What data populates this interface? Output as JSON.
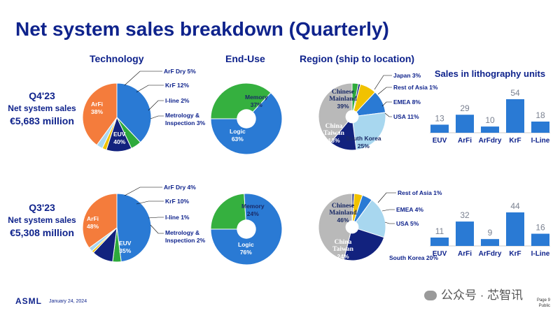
{
  "title": "Net system sales breakdown (Quarterly)",
  "headers": {
    "technology": "Technology",
    "end_use": "End-Use",
    "region": "Region (ship to location)"
  },
  "rows": [
    {
      "quarter": "Q4'23",
      "sales_label": "Net system sales",
      "amount": "€5,683 million"
    },
    {
      "quarter": "Q3'23",
      "sales_label": "Net system sales",
      "amount": "€5,308 million"
    }
  ],
  "chart_data": [
    {
      "type": "pie",
      "id": "tech_q4",
      "labels": [
        "ArFi",
        "ArF Dry",
        "KrF",
        "I-line",
        "Metrology & Inspection",
        "EUV"
      ],
      "values": [
        38,
        5,
        12,
        2,
        3,
        40
      ],
      "colors": [
        "#2a7ad4",
        "#2eaa3c",
        "#12227e",
        "#f1c200",
        "#a8d7ef",
        "#f47c3c"
      ],
      "label_texts": [
        "ArFi 38%",
        "ArF Dry 5%",
        "KrF 12%",
        "I-line 2%",
        "Metrology & Inspection 3%",
        "EUV 40%"
      ]
    },
    {
      "type": "pie",
      "id": "enduse_q4",
      "labels": [
        "Memory",
        "Logic"
      ],
      "values": [
        37,
        63
      ],
      "colors": [
        "#35b03f",
        "#2a7ad4"
      ],
      "label_texts": [
        "Memory 37%",
        "Logic 63%"
      ]
    },
    {
      "type": "pie",
      "id": "region_q4",
      "labels": [
        "Japan",
        "Rest of Asia",
        "EMEA",
        "USA",
        "South Korea",
        "China Taiwan",
        "Chinese Mainland"
      ],
      "values": [
        3,
        1,
        8,
        11,
        25,
        13,
        39
      ],
      "colors": [
        "#2eaa3c",
        "#12227e",
        "#f1c200",
        "#2a7ad4",
        "#a8d7ef",
        "#12227e",
        "#b9b9b9"
      ],
      "label_texts": [
        "Japan 3%",
        "Rest of Asia 1%",
        "EMEA 8%",
        "USA 11%",
        "South Korea 25%",
        "China Taiwan 13%",
        "Chinese Mainland 39%"
      ]
    },
    {
      "type": "bar",
      "id": "units_q4",
      "title": "Sales in lithography units",
      "categories": [
        "EUV",
        "ArFi",
        "ArFdry",
        "KrF",
        "I-Line"
      ],
      "values": [
        13,
        29,
        10,
        54,
        18
      ],
      "color": "#2a7ad4"
    },
    {
      "type": "pie",
      "id": "tech_q3",
      "labels": [
        "ArFi",
        "ArF Dry",
        "KrF",
        "I-line",
        "Metrology & Inspection",
        "EUV"
      ],
      "values": [
        48,
        4,
        10,
        1,
        2,
        35
      ],
      "colors": [
        "#2a7ad4",
        "#2eaa3c",
        "#12227e",
        "#f1c200",
        "#a8d7ef",
        "#f47c3c"
      ],
      "label_texts": [
        "ArFi 48%",
        "ArF Dry 4%",
        "KrF 10%",
        "I-line 1%",
        "Metrology & Inspection 2%",
        "EUV 35%"
      ]
    },
    {
      "type": "pie",
      "id": "enduse_q3",
      "labels": [
        "Memory",
        "Logic"
      ],
      "values": [
        24,
        76
      ],
      "colors": [
        "#35b03f",
        "#2a7ad4"
      ],
      "label_texts": [
        "Memory 24%",
        "Logic 76%"
      ]
    },
    {
      "type": "pie",
      "id": "region_q3",
      "labels": [
        "Rest of Asia",
        "EMEA",
        "USA",
        "South Korea",
        "China Taiwan",
        "Chinese Mainland"
      ],
      "values": [
        1,
        4,
        5,
        20,
        24,
        46
      ],
      "colors": [
        "#12227e",
        "#f1c200",
        "#2a7ad4",
        "#a8d7ef",
        "#12227e",
        "#b9b9b9"
      ],
      "label_texts": [
        "Rest of Asia 1%",
        "EMEA 4%",
        "USA 5%",
        "South Korea 20%",
        "China Taiwan 24%",
        "Chinese Mainland 46%"
      ]
    },
    {
      "type": "bar",
      "id": "units_q3",
      "title": "",
      "categories": [
        "EUV",
        "ArFi",
        "ArFdry",
        "KrF",
        "I-Line"
      ],
      "values": [
        11,
        32,
        9,
        44,
        16
      ],
      "color": "#2a7ad4"
    }
  ],
  "footer": {
    "logo": "ASML",
    "date": "January 24, 2024",
    "page": "Page 9",
    "classification": "Public",
    "watermark": "公众号 · 芯智讯"
  }
}
